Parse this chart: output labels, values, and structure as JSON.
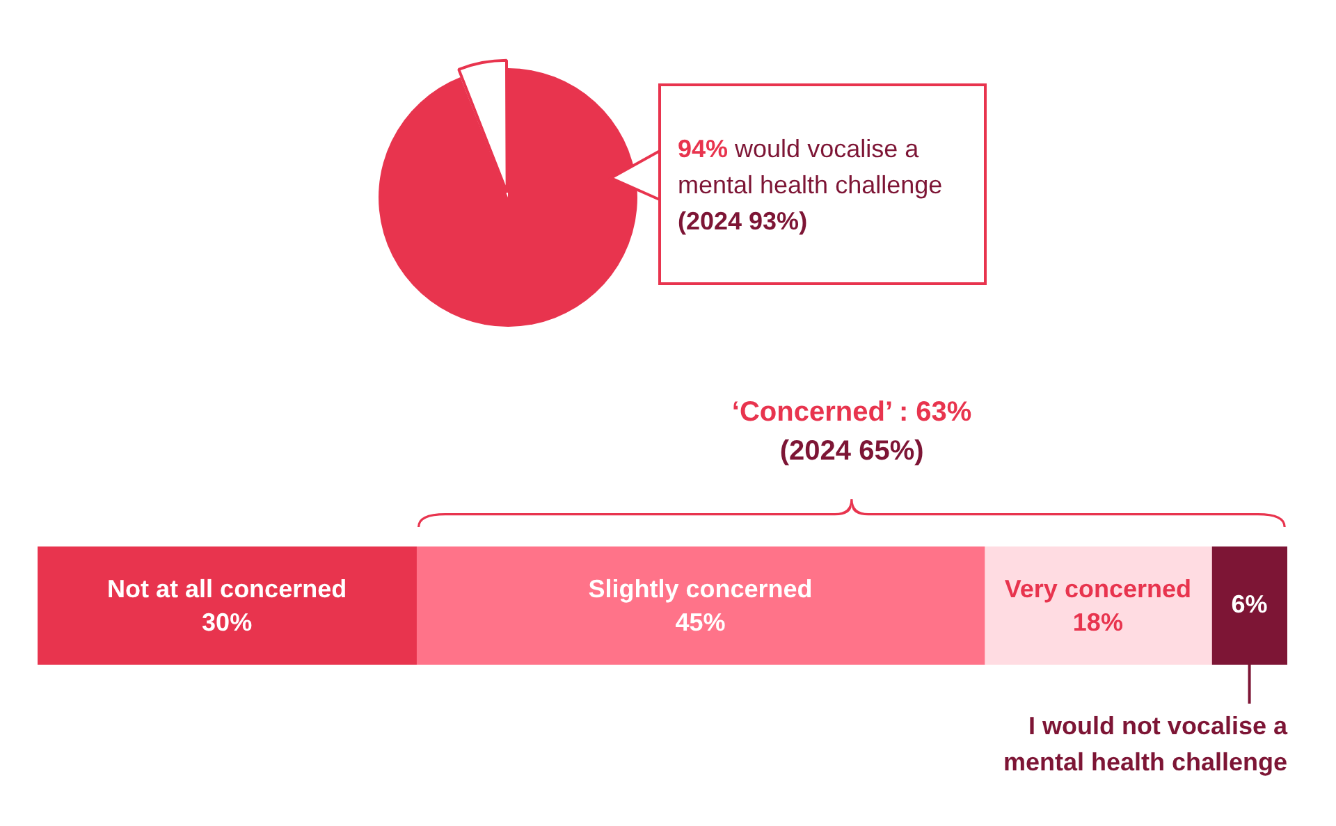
{
  "chart_data": [
    {
      "type": "pie",
      "categories": [
        null,
        null
      ],
      "values": [
        94,
        6
      ],
      "colors": [
        "#e8344e",
        "#ffffff"
      ],
      "legend": false,
      "annotations": [
        "94% would vocalise a mental health challenge",
        "(2024 93%)"
      ]
    },
    {
      "type": "bar",
      "orientation": "horizontal",
      "stacked": true,
      "categories": [
        null
      ],
      "xlim": [
        0,
        99
      ],
      "tick_labels": false,
      "series": [
        {
          "name": "Not at all concerned",
          "color": "#e8344e",
          "values": [
            30
          ],
          "value_labels": [
            "30%"
          ]
        },
        {
          "name": "Slightly concerned",
          "color": "#ff7389",
          "values": [
            45
          ],
          "value_labels": [
            "45%"
          ]
        },
        {
          "name": "Very concerned",
          "color": "#ffdce2",
          "values": [
            18
          ],
          "value_labels": [
            "18%"
          ]
        },
        {
          "name": "I would not vocalise a mental health challenge",
          "color": "#7d1535",
          "values": [
            6
          ],
          "value_labels": [
            "6%"
          ]
        }
      ],
      "annotations": [
        "‘Concerned’ : 63%",
        "(2024 65%)"
      ]
    }
  ]
}
